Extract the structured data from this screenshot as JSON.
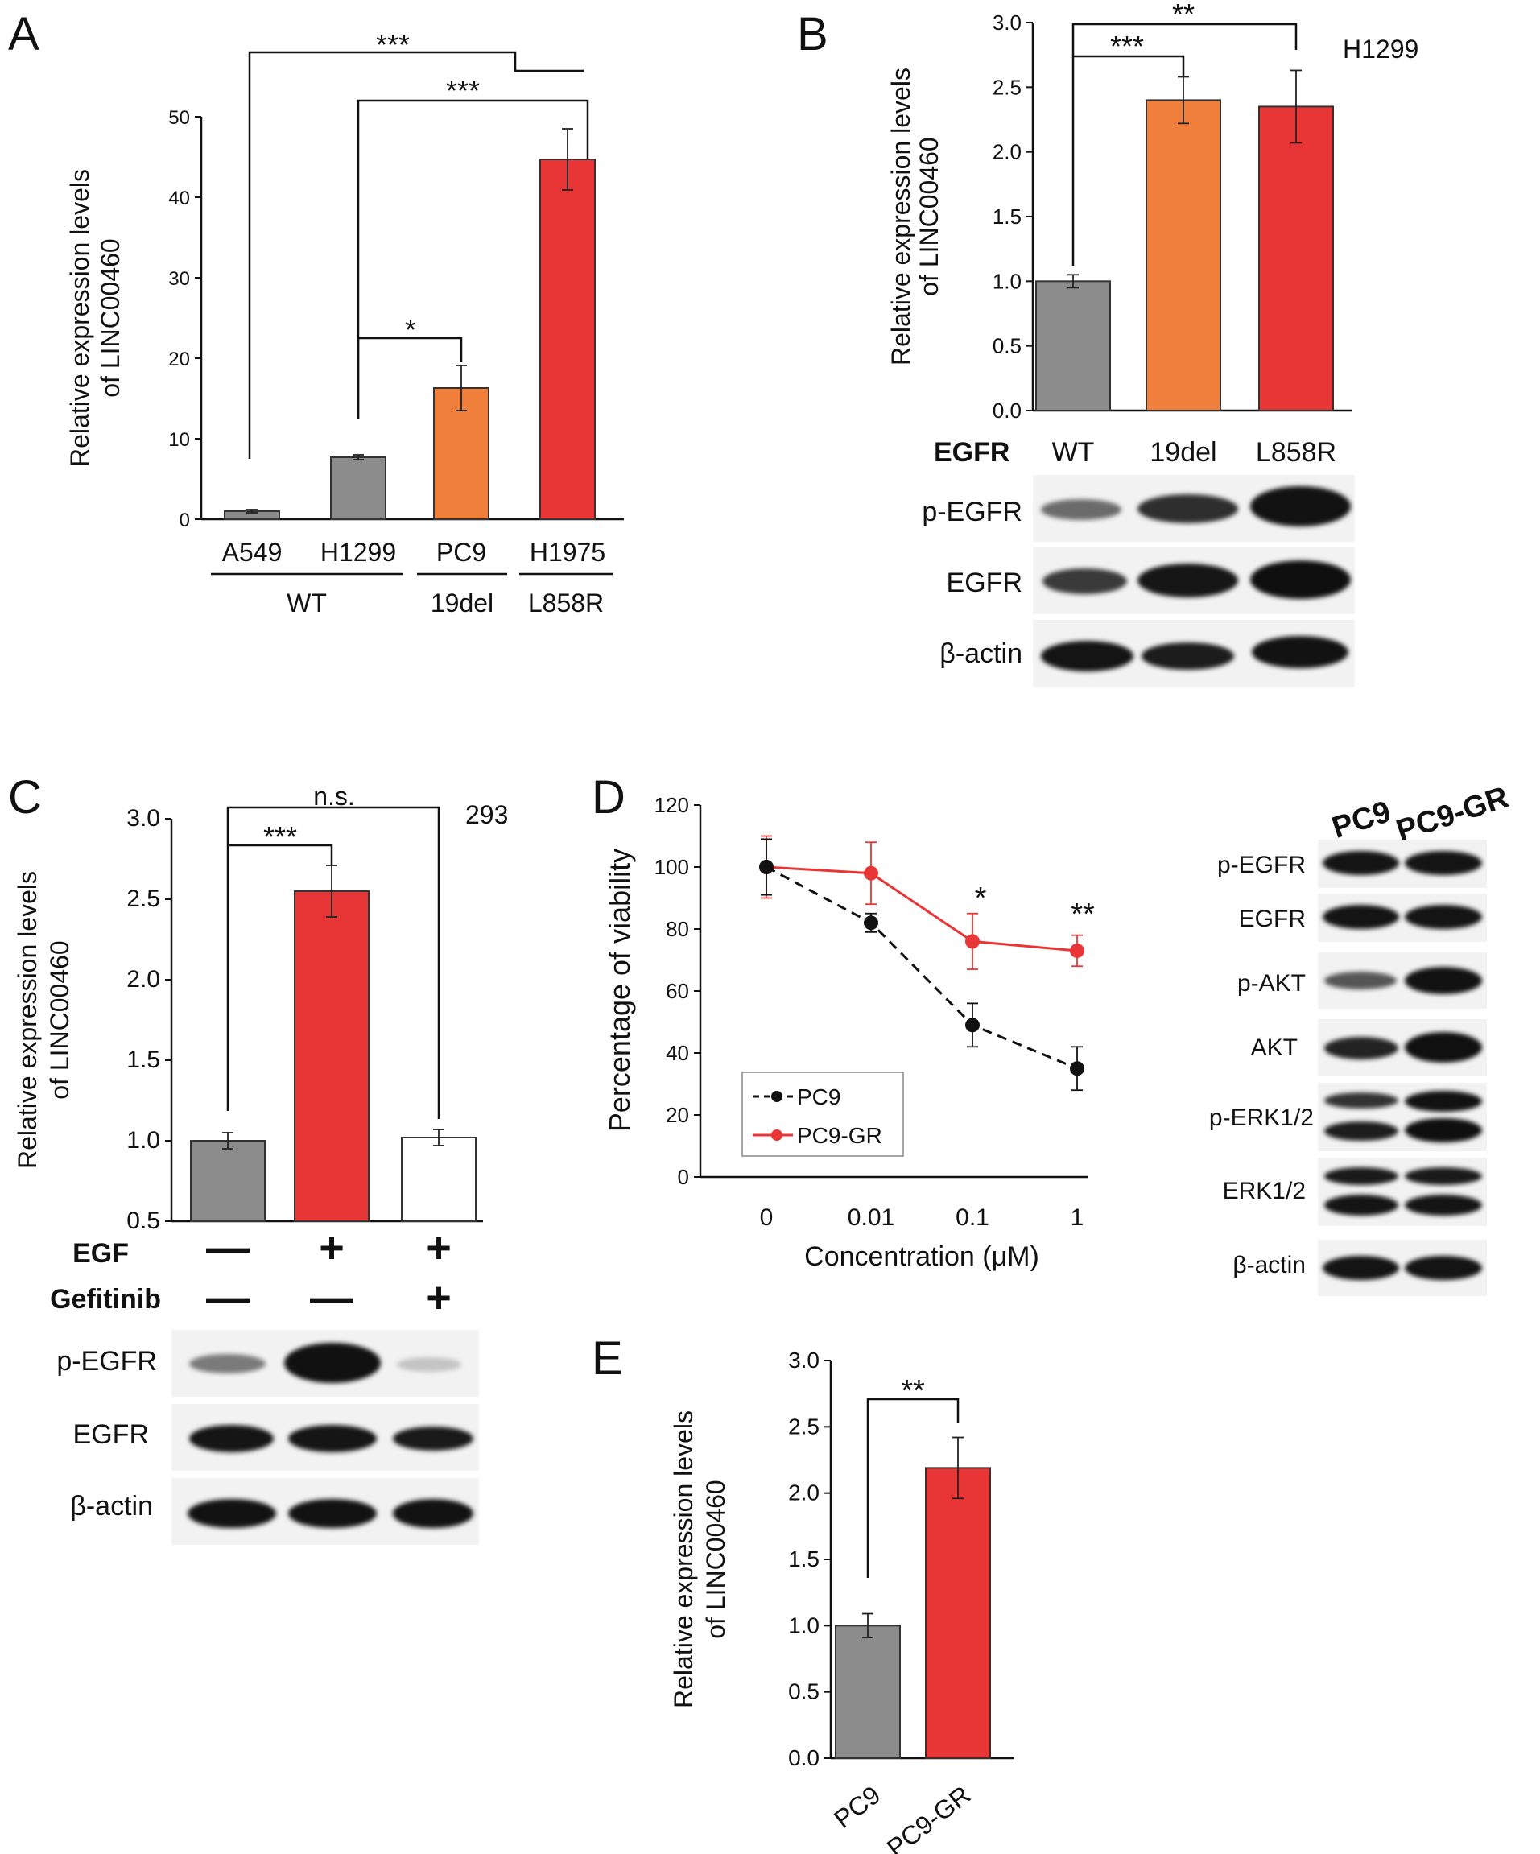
{
  "panels": {
    "A": {
      "letter": "A",
      "cell_wt": "WT",
      "cell_19del": "19del",
      "cell_l858r": "L858R",
      "sig1": "***",
      "sig2": "***",
      "sig3": "*"
    },
    "B": {
      "letter": "B",
      "cell_line": "H1299",
      "egfr_label": "EGFR",
      "sig1": "**",
      "sig2": "***",
      "blot_rows": [
        "p-EGFR",
        "EGFR",
        "β-actin"
      ]
    },
    "C": {
      "letter": "C",
      "cell_line": "293",
      "sig_ns": "n.s.",
      "sig1": "***",
      "egf_label": "EGF",
      "gef_label": "Gefitinib",
      "egf_signs": [
        "—",
        "+",
        "+"
      ],
      "gef_signs": [
        "—",
        "—",
        "+"
      ],
      "blot_rows": [
        "p-EGFR",
        "EGFR",
        "β-actin"
      ]
    },
    "D": {
      "letter": "D",
      "sig1": "*",
      "sig2": "**",
      "blot_cols": [
        "PC9",
        "PC9-GR"
      ],
      "blot_rows": [
        "p-EGFR",
        "EGFR",
        "p-AKT",
        "AKT",
        "p-ERK1/2",
        "ERK1/2",
        "β-actin"
      ]
    },
    "E": {
      "letter": "E",
      "sig1": "**"
    }
  },
  "colors": {
    "gray": "#8c8c8c",
    "orange": "#f07f3c",
    "red": "#e83535",
    "white": "#ffffff",
    "black": "#111111"
  },
  "chart_data": [
    {
      "id": "A",
      "type": "bar",
      "categories": [
        "A549",
        "H1299",
        "PC9",
        "H1975"
      ],
      "values": [
        1.0,
        7.7,
        16.3,
        44.7
      ],
      "errors": [
        0.2,
        0.3,
        2.8,
        3.8
      ],
      "colors": [
        "#8c8c8c",
        "#8c8c8c",
        "#f07f3c",
        "#e83535"
      ],
      "ylabel": "Relative expression levels of LINC00460",
      "ylim": [
        0,
        50
      ],
      "yticks": [
        0,
        10,
        20,
        30,
        40,
        50
      ]
    },
    {
      "id": "B",
      "type": "bar",
      "categories": [
        "WT",
        "19del",
        "L858R"
      ],
      "values": [
        1.0,
        2.4,
        2.35
      ],
      "errors": [
        0.05,
        0.18,
        0.28
      ],
      "colors": [
        "#8c8c8c",
        "#f07f3c",
        "#e83535"
      ],
      "ylabel": "Relative expression levels of LINC00460",
      "ylim": [
        0,
        3.0
      ],
      "yticks": [
        "0.0",
        "0.5",
        "1.0",
        "1.5",
        "2.0",
        "2.5",
        "3.0"
      ]
    },
    {
      "id": "C",
      "type": "bar",
      "categories": [
        "",
        "",
        ""
      ],
      "values": [
        1.0,
        2.55,
        1.02
      ],
      "errors": [
        0.05,
        0.16,
        0.05
      ],
      "colors": [
        "#8c8c8c",
        "#e83535",
        "#ffffff"
      ],
      "ylabel": "Relative expression levels of LINC00460",
      "ylim": [
        0.5,
        3.0
      ],
      "yticks": [
        "0.5",
        "1.0",
        "1.5",
        "2.0",
        "2.5",
        "3.0"
      ]
    },
    {
      "id": "D",
      "type": "line",
      "x": [
        "0",
        "0.01",
        "0.1",
        "1"
      ],
      "series": [
        {
          "name": "PC9",
          "values": [
            100,
            82,
            49,
            35
          ],
          "errors": [
            9,
            3,
            7,
            7
          ],
          "color": "#111111",
          "dashed": true
        },
        {
          "name": "PC9-GR",
          "values": [
            100,
            98,
            76,
            73
          ],
          "errors": [
            10,
            10,
            9,
            5
          ],
          "color": "#e83535",
          "dashed": false
        }
      ],
      "xlabel": "Concentration (μM)",
      "ylabel": "Percentage of viability",
      "ylim": [
        0,
        120
      ],
      "yticks": [
        0,
        20,
        40,
        60,
        80,
        100,
        120
      ]
    },
    {
      "id": "E",
      "type": "bar",
      "categories": [
        "PC9",
        "PC9-GR"
      ],
      "values": [
        1.0,
        2.19
      ],
      "errors": [
        0.09,
        0.23
      ],
      "colors": [
        "#8c8c8c",
        "#e83535"
      ],
      "ylabel": "Relative expression levels of LINC00460",
      "ylim": [
        0,
        3.0
      ],
      "yticks": [
        "0.0",
        "0.5",
        "1.0",
        "1.5",
        "2.0",
        "2.5",
        "3.0"
      ]
    }
  ]
}
